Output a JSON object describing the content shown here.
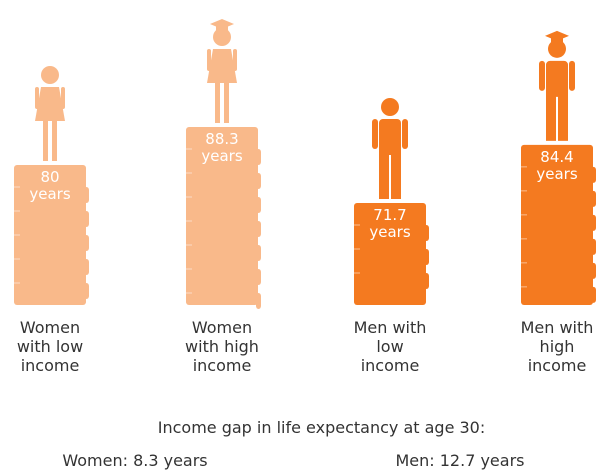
{
  "chart_data": {
    "type": "bar",
    "categories": [
      "Women with low income",
      "Women with high income",
      "Men with low income",
      "Men with high income"
    ],
    "values": [
      80,
      88.3,
      71.7,
      84.4
    ],
    "value_labels": [
      "80 years",
      "88.3 years",
      "71.7 years",
      "84.4 years"
    ],
    "colors": [
      "#f9b98a",
      "#f9b98a",
      "#f47a20",
      "#f47a20"
    ],
    "annotations": [
      "Income gap in life expectancy at age 30:",
      "Women: 8.3 years",
      "Men: 12.7 years"
    ]
  }
}
